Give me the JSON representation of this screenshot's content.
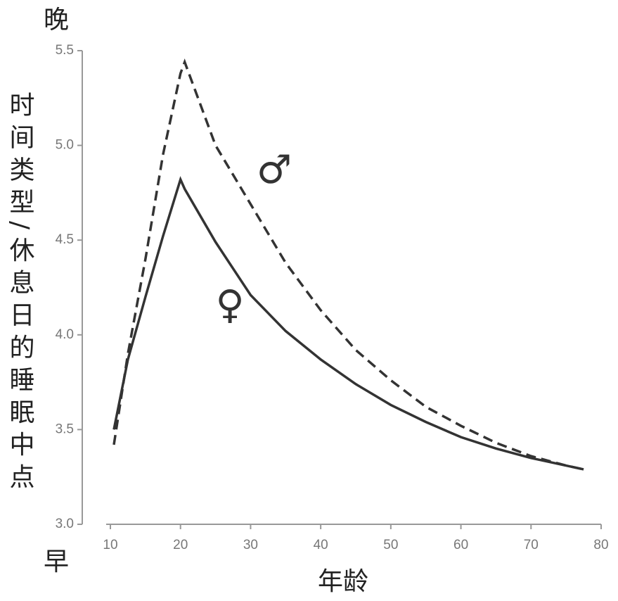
{
  "chart_data": {
    "type": "line",
    "y_label": "时间类型/休息日的睡眠中点",
    "y_top_label": "晚",
    "y_bottom_label": "早",
    "x_label": "年龄",
    "x": [
      10.5,
      12.5,
      15,
      17.5,
      20,
      20.6,
      25,
      30,
      35,
      40,
      45,
      50,
      55,
      60,
      65,
      70,
      75,
      77.5
    ],
    "series": [
      {
        "name": "♀",
        "color": "#333333",
        "dashed": false,
        "values": [
          3.5,
          3.87,
          4.2,
          4.52,
          4.82,
          4.77,
          4.49,
          4.21,
          4.02,
          3.87,
          3.74,
          3.63,
          3.54,
          3.46,
          3.4,
          3.35,
          3.31,
          3.29
        ]
      },
      {
        "name": "♂",
        "color": "#333333",
        "dashed": true,
        "values": [
          3.42,
          3.9,
          4.4,
          4.95,
          5.38,
          5.44,
          5.0,
          4.69,
          4.38,
          4.13,
          3.92,
          3.76,
          3.62,
          3.52,
          3.43,
          3.36,
          3.31,
          3.29
        ]
      }
    ],
    "xlim": [
      10,
      80
    ],
    "xticks": [
      10,
      20,
      30,
      40,
      50,
      60,
      70,
      80
    ],
    "ylim": [
      3.0,
      5.5
    ],
    "yticks": [
      {
        "value": 3.0,
        "label": "3.0"
      },
      3.5,
      {
        "value": 4.0,
        "label": "4.0"
      },
      4.5,
      {
        "value": 5.0,
        "label": "5.0"
      },
      5.5
    ],
    "grid": false
  }
}
